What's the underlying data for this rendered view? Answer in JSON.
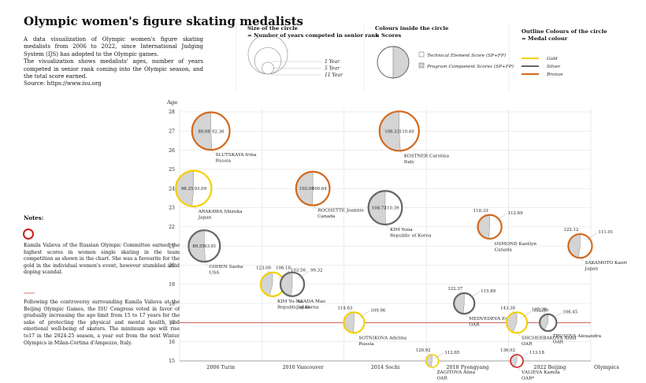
{
  "title": "Olympic women's figure skating medalists",
  "intro": {
    "p1": "A data visualization of Olympic women's figure skating medalists from 2006 to 2022, since International Judging System (IJS) has adopted to the Olympic games.",
    "p2": "The visualization shows medalists' ages, number of years competed in senior rank coming into the Olympic season, and the total score earned.",
    "source": "Source: https://www.isu.org"
  },
  "legend": {
    "size": {
      "title": "Size of the circle",
      "subtitle": "= Number of years competed in senior rank",
      "items": [
        {
          "years": 1,
          "label": "1 Year"
        },
        {
          "years": 5,
          "label": "5 Year"
        },
        {
          "years": 11,
          "label": "11 Year"
        }
      ]
    },
    "scores": {
      "title": "Colours inside the circle",
      "subtitle": "= Scores",
      "items": [
        "Technical Element Score (SP+FP)",
        "Program Component Scores (SP+FP)"
      ]
    },
    "outline": {
      "title": "Outline Colours of the circle",
      "subtitle": "= Medal colour",
      "items": [
        {
          "label": "Gold",
          "color": "#f5d000"
        },
        {
          "label": "Silver",
          "color": "#666666"
        },
        {
          "label": "Bronze",
          "color": "#d2691e"
        }
      ]
    }
  },
  "notes": {
    "title": "Notes:",
    "note1": "Kamila Valieva of the Russian Olympic Committee earned the highest scores in women single skating in the team competition as shown in the chart. She was a favourite for the gold in the individual women's event, however stumbled amid doping scandal.",
    "note2": "Following the controversy surrounding Kamila Valieva at the Beijing Olympic Games, the ISU Congress voted in favor of gradually increasing the age limit from 15 to 17 years for the sake of protecting the physical and mental health, and emotional well-being of skaters. The minimum age will rise to17 in the 2024-25 season, a year out from the next Winter Olympics in Milan-Cortina d'Ampezzo, Italy."
  },
  "colors": {
    "gold": "#f5d000",
    "silver": "#666666",
    "bronze": "#d2691e",
    "special": "#cc1f1f",
    "tes_fill": "#ffffff",
    "pcs_fill": "#d4d4d4",
    "age_line": "#c0392b",
    "grid": "#dddddd"
  },
  "chart_data": {
    "type": "scatter",
    "title": "Olympic women's figure skating medalists",
    "ylabel": "Age",
    "xlabel": "Olympics",
    "ylim": [
      15,
      28
    ],
    "yticks": [
      15,
      16,
      17,
      18,
      19,
      20,
      21,
      22,
      23,
      24,
      25,
      26,
      27,
      28
    ],
    "categories": [
      "2006 Turin",
      "2010 Vancouver",
      "2014 Sochi",
      "2018 Pyongyang",
      "2022 Beijing"
    ],
    "age_limit_line": 17,
    "points": [
      {
        "name": "SLUTSKAYA Irina",
        "country": "Russia",
        "olympics": "2006 Turin",
        "age": 27,
        "years": 10,
        "tes": 89.08,
        "pcs": 92.36,
        "medal": "bronze",
        "slot": 0.38
      },
      {
        "name": "ARAKAWA Shizuka",
        "country": "Japan",
        "olympics": "2006 Turin",
        "age": 24,
        "years": 9,
        "tes": 98.25,
        "pcs": 93.09,
        "medal": "gold",
        "slot": 0.17
      },
      {
        "name": "COHEN Sasha",
        "country": "USA",
        "olympics": "2006 Turin",
        "age": 21,
        "years": 7,
        "tes": 89.55,
        "pcs": 93.81,
        "medal": "silver",
        "slot": 0.3
      },
      {
        "name": "ROCHETTE Joannie",
        "country": "Canada",
        "olympics": "2010 Vancouver",
        "age": 24,
        "years": 8,
        "tes": 102.0,
        "pcs": 100.64,
        "medal": "bronze",
        "slot": 0.62
      },
      {
        "name": "KIM Yu-Na",
        "country": "Republic of Korea",
        "olympics": "2010 Vancouver",
        "age": 19,
        "years": 4,
        "tes": 123.0,
        "pcs": 103.56,
        "medal": "gold",
        "slot": 0.13
      },
      {
        "name": "ASADA Mao",
        "country": "Japan",
        "olympics": "2010 Vancouver",
        "age": 19,
        "years": 4,
        "tes": 106.18,
        "pcs": 99.32,
        "medal": "silver",
        "slot": 0.37
      },
      {
        "name": "KOSTNER Carolina",
        "country": "Italy",
        "olympics": "2014 Sochi",
        "age": 27,
        "years": 11,
        "tes": 106.33,
        "pcs": 110.4,
        "medal": "bronze",
        "slot": 0.67
      },
      {
        "name": "KIM Yuna",
        "country": "Republic of Korea",
        "olympics": "2014 Sochi",
        "age": 23,
        "years": 8,
        "tes": 108.72,
        "pcs": 110.39,
        "medal": "silver",
        "slot": 0.5
      },
      {
        "name": "SOTNIKOVA Adelina",
        "country": "Russia",
        "olympics": "2014 Sochi",
        "age": 17,
        "years": 3,
        "tes": 114.63,
        "pcs": 109.96,
        "medal": "gold",
        "slot": 0.12
      },
      {
        "name": "OSMOND Kaetlyn",
        "country": "Canada",
        "olympics": "2018 Pyongyang",
        "age": 22,
        "years": 4,
        "tes": 118.33,
        "pcs": 112.69,
        "medal": "bronze",
        "slot": 0.77
      },
      {
        "name": "MEDVEDEVA Evgenia",
        "country": "OAR",
        "olympics": "2018 Pyongyang",
        "age": 18,
        "years": 3,
        "tes": 122.37,
        "pcs": 115.89,
        "medal": "silver",
        "slot": 0.46
      },
      {
        "name": "ZAGITOVA Alina",
        "country": "OAR",
        "olympics": "2018 Pyongyang",
        "age": 15,
        "years": 1,
        "tes": 126.92,
        "pcs": 112.65,
        "medal": "gold",
        "slot": 0.07
      },
      {
        "name": "SAKAMOTO Kaori",
        "country": "Japan",
        "olympics": "2022 Beijing",
        "age": 21,
        "years": 4,
        "tes": 122.12,
        "pcs": 111.01,
        "medal": "bronze",
        "slot": 0.87
      },
      {
        "name": "SHCHERBAKOVA Anna",
        "country": "OAR",
        "olympics": "2022 Beijing",
        "age": 17,
        "years": 3,
        "tes": 143.36,
        "pcs": 112.59,
        "medal": "gold",
        "slot": 0.1
      },
      {
        "name": "TRUSOVA Alexandra",
        "country": "OAR",
        "olympics": "2022 Beijing",
        "age": 17,
        "years": 2,
        "tes": 145.28,
        "pcs": 106.45,
        "medal": "silver",
        "slot": 0.48
      },
      {
        "name": "VALIEVA Kamila",
        "country": "OAR*",
        "olympics": "2022 Beijing",
        "age": 15,
        "years": 1,
        "tes": 136.92,
        "pcs": 113.18,
        "medal": "special",
        "slot": 0.1
      }
    ]
  }
}
